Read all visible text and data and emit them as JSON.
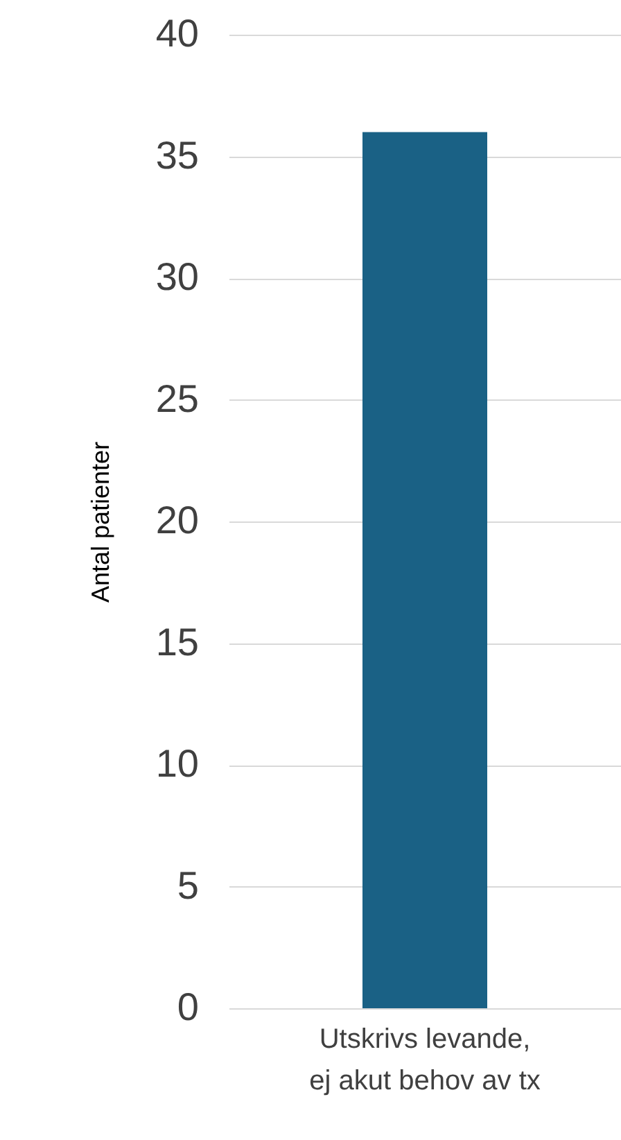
{
  "chart_data": {
    "type": "bar",
    "ylabel": "Antal patienter",
    "categories": [
      "Utskrivs levande, ej akut behov av tx"
    ],
    "values": [
      36
    ],
    "color": "#1a6185",
    "ylim": [
      0,
      40
    ],
    "yticks": [
      0,
      5,
      10,
      15,
      20,
      25,
      30,
      35,
      40
    ],
    "grid": "y"
  }
}
